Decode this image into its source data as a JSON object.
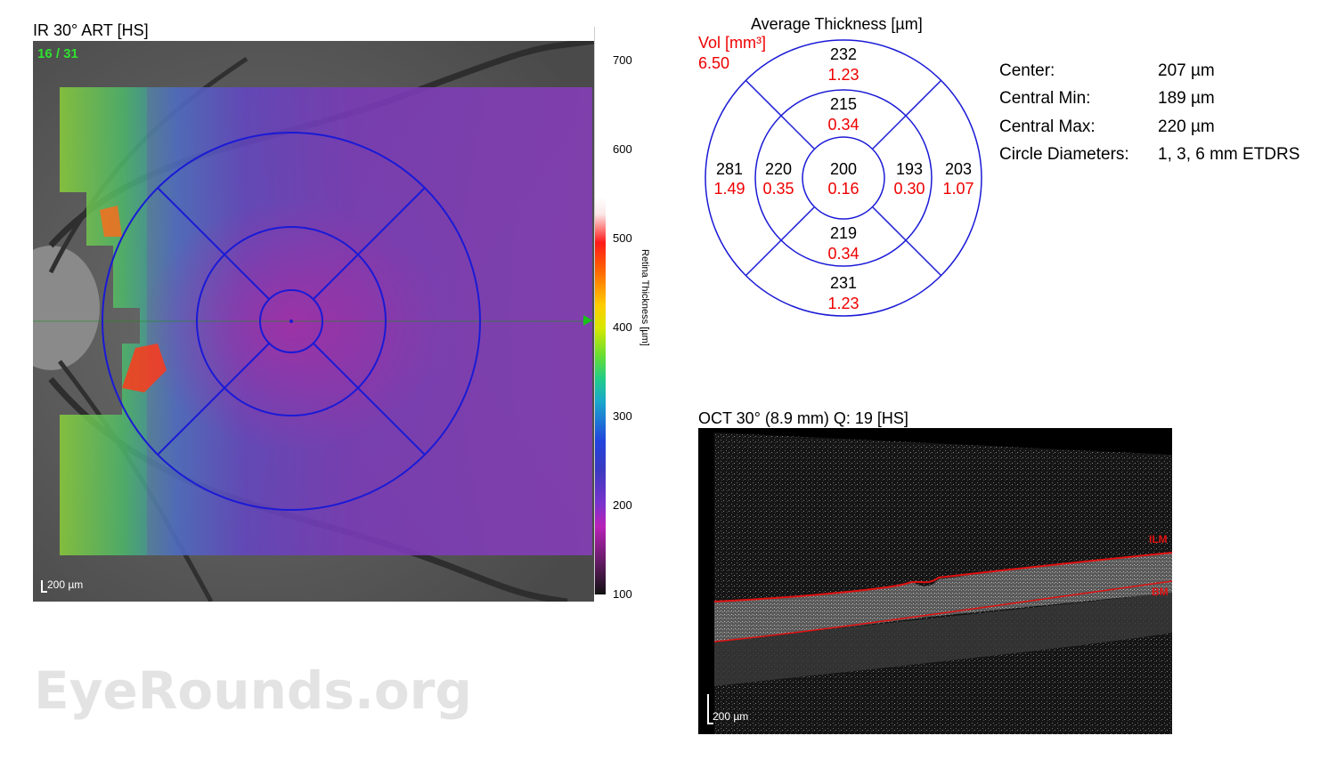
{
  "ir": {
    "title": "IR 30° ART [HS]",
    "frame_counter": "16 / 31",
    "scale_label": "200 µm"
  },
  "colorbar": {
    "title": "Retina Thickness [µm]",
    "ticks": [
      "700",
      "600",
      "500",
      "400",
      "300",
      "200",
      "100"
    ],
    "marker_color": "#19c219"
  },
  "etdrs": {
    "title": "Average Thickness [µm]",
    "vol_label": "Vol [mm³]",
    "vol_total": "6.50",
    "center": {
      "thickness": "200",
      "volume": "0.16"
    },
    "inner_superior": {
      "thickness": "215",
      "volume": "0.34"
    },
    "inner_inferior": {
      "thickness": "219",
      "volume": "0.34"
    },
    "inner_temporal": {
      "thickness": "220",
      "volume": "0.35"
    },
    "inner_nasal": {
      "thickness": "193",
      "volume": "0.30"
    },
    "outer_superior": {
      "thickness": "232",
      "volume": "1.23"
    },
    "outer_inferior": {
      "thickness": "231",
      "volume": "1.23"
    },
    "outer_temporal": {
      "thickness": "281",
      "volume": "1.49"
    },
    "outer_nasal": {
      "thickness": "203",
      "volume": "1.07"
    },
    "line_color": "#1a1ad6",
    "volume_color": "#ee0000"
  },
  "stats": [
    {
      "label": "Center:",
      "value": "207 µm"
    },
    {
      "label": "Central Min:",
      "value": "189 µm"
    },
    {
      "label": "Central Max:",
      "value": "220 µm"
    },
    {
      "label": "Circle Diameters:",
      "value": "1, 3, 6 mm ETDRS"
    }
  ],
  "oct": {
    "title": "OCT 30° (8.9 mm) Q: 19 [HS]",
    "ilm_label": "ILM",
    "bm_label": "BM",
    "scale_label": "200 µm",
    "segmentation_color": "#e01010"
  },
  "watermark": "EyeRounds.org"
}
